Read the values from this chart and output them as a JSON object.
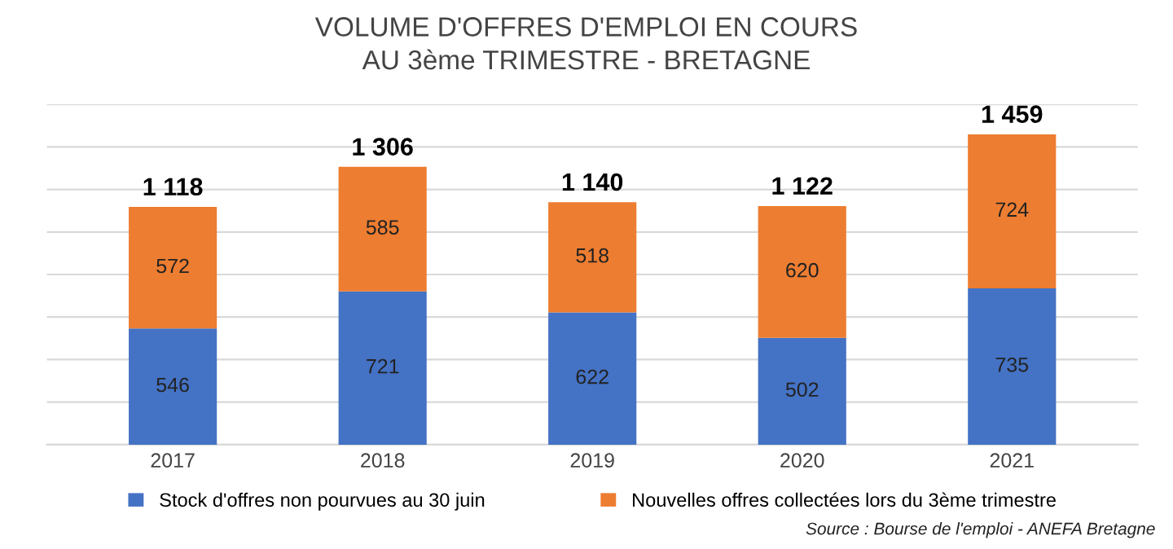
{
  "chart_data": {
    "type": "bar",
    "stacked": true,
    "title": "VOLUME D'OFFRES D'EMPLOI EN COURS\nAU 3ème TRIMESTRE - BRETAGNE",
    "categories": [
      "2017",
      "2018",
      "2019",
      "2020",
      "2021"
    ],
    "series": [
      {
        "name": "Stock d'offres non pourvues au 30 juin",
        "color": "#4472c4",
        "values": [
          546,
          721,
          622,
          502,
          735
        ]
      },
      {
        "name": "Nouvelles offres collectées lors du 3ème trimestre",
        "color": "#ed7d31",
        "values": [
          572,
          585,
          518,
          620,
          724
        ]
      }
    ],
    "data_labels": true,
    "totals": [
      "1 118",
      "1 306",
      "1 140",
      "1 122",
      "1 459"
    ],
    "ylim": [
      0,
      1600
    ],
    "yticks": [
      {
        "value": 0,
        "label": null
      },
      {
        "value": 200,
        "label": null
      },
      {
        "value": 400,
        "label": null
      },
      {
        "value": 600,
        "label": null
      },
      {
        "value": 800,
        "label": null
      },
      {
        "value": 1000,
        "label": null
      },
      {
        "value": 1200,
        "label": null
      },
      {
        "value": 1400,
        "label": null
      },
      {
        "value": 1600,
        "label": null
      }
    ],
    "tick_labels": "x",
    "grid": "y",
    "legend": "bottom",
    "annotations": [
      "Source : Bourse de l'emploi - ANEFA Bretagne"
    ]
  }
}
